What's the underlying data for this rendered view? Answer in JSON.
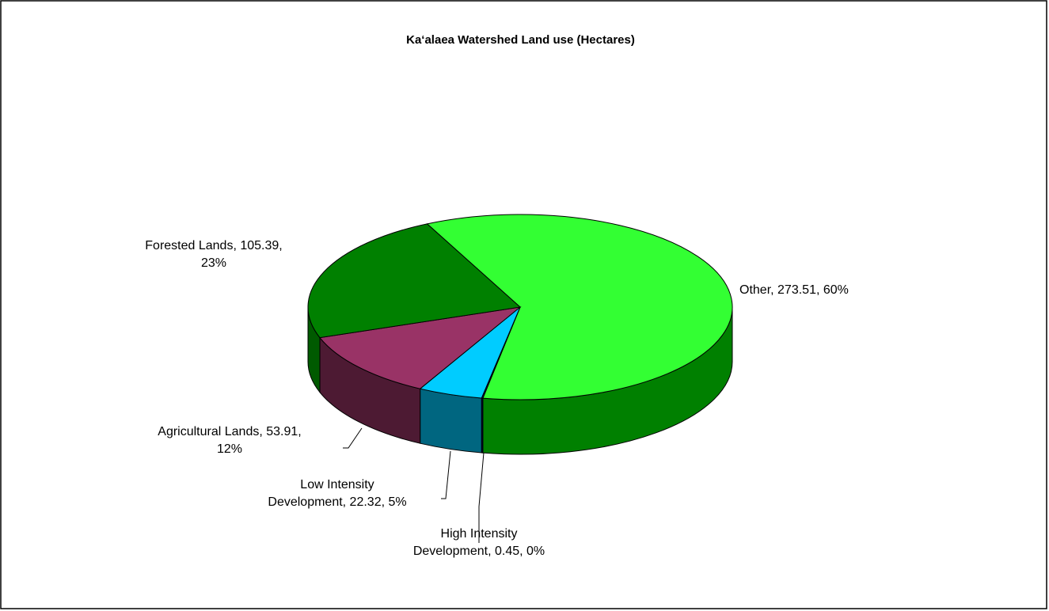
{
  "chart_data": {
    "type": "pie",
    "title": "Ka‘alaea  Watershed Land use (Hectares)",
    "categories": [
      "Other",
      "High Intensity Development",
      "Low Intensity Development",
      "Agricultural Lands",
      "Forested Lands"
    ],
    "values": [
      273.51,
      0.45,
      22.32,
      53.91,
      105.39
    ],
    "value_labels": [
      "Other, 273.51, 60%",
      "High Intensity\nDevelopment, 0.45, 0%",
      "Low Intensity\nDevelopment, 22.32, 5%",
      "Agricultural Lands, 53.91,\n12%",
      "Forested Lands, 105.39,\n23%"
    ],
    "colors": [
      "#33ff33",
      "#000080",
      "#00ccff",
      "#993366",
      "#008000"
    ],
    "side_colors": [
      "#008000",
      "#000050",
      "#006680",
      "#4d1a33",
      "#005a00"
    ]
  }
}
